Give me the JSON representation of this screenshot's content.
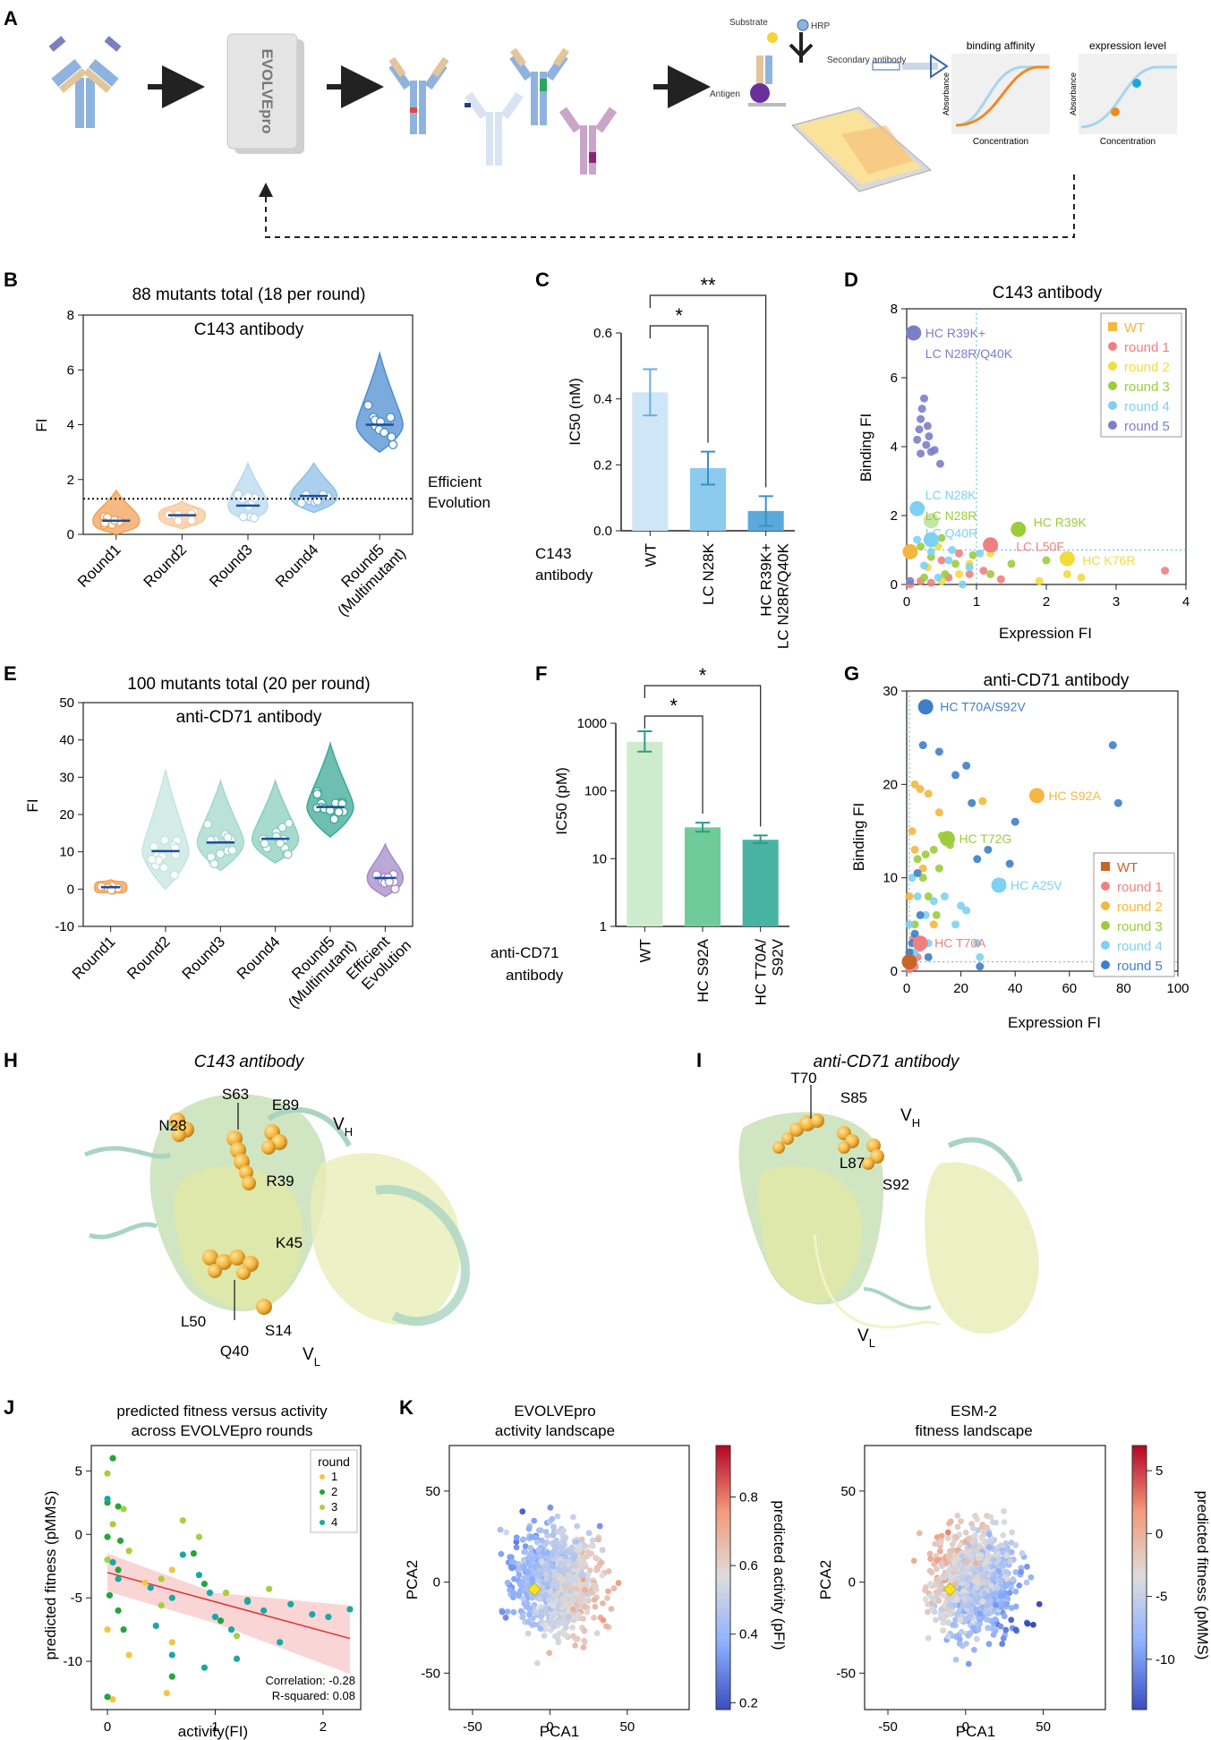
{
  "panel_labels": {
    "A": "A",
    "B": "B",
    "C": "C",
    "D": "D",
    "E": "E",
    "F": "F",
    "G": "G",
    "H": "H",
    "I": "I",
    "J": "J",
    "K": "K"
  },
  "panel_a": {
    "box_label": "EVOLVEpro",
    "assay": {
      "substrate": "Substrate",
      "hrp": "HRP",
      "secondary": "Secondary antibody",
      "antigen": "Antigen"
    },
    "inset1": {
      "title": "binding affinity",
      "ylabel": "Absorbance",
      "xlabel": "Concentration"
    },
    "inset2": {
      "title": "expression level",
      "ylabel": "Absorbance",
      "xlabel": "Concentration"
    }
  },
  "chart_data": [
    {
      "panel": "B",
      "type": "violin",
      "title": "88 mutants total (18 per round)",
      "subtitle": "C143 antibody",
      "ylabel": "FI",
      "ylim": [
        0,
        8
      ],
      "yticks": [
        0,
        2,
        4,
        6,
        8
      ],
      "categories": [
        "Round1",
        "Round2",
        "Round3",
        "Round4",
        "Round5 (Multimutant)"
      ],
      "colors": [
        "#f2a15a",
        "#f7c99c",
        "#b9d8ef",
        "#8fc0e8",
        "#4f8fd0"
      ],
      "medians": [
        0.5,
        0.7,
        1.05,
        1.4,
        4.0
      ],
      "threshold": {
        "value": 1.3,
        "label": "Efficient Evolution"
      }
    },
    {
      "panel": "C",
      "type": "bar",
      "ylabel": "IC50 (nM)",
      "ylim": [
        0,
        0.6
      ],
      "yticks": [
        0.0,
        0.2,
        0.4,
        0.6
      ],
      "group_label": "C143 antibody",
      "categories": [
        "WT",
        "LC N28K",
        "HC R39K+ LC N28R/Q40K"
      ],
      "values": [
        0.42,
        0.19,
        0.06
      ],
      "errors": [
        0.07,
        0.05,
        0.045
      ],
      "colors": [
        "#cfe6f8",
        "#8ccbee",
        "#5ba9dc"
      ],
      "significance": [
        {
          "label": "*",
          "from": 0,
          "to": 1
        },
        {
          "label": "**",
          "from": 0,
          "to": 2
        }
      ]
    },
    {
      "panel": "D",
      "type": "scatter",
      "title": "C143 antibody",
      "xlabel": "Expression FI",
      "ylabel": "Binding FI",
      "xlim": [
        0,
        4
      ],
      "ylim": [
        0,
        8
      ],
      "xticks": [
        0,
        1,
        2,
        3,
        4
      ],
      "yticks": [
        0,
        2,
        4,
        6,
        8
      ],
      "legend": [
        {
          "name": "WT",
          "color": "#f4b73f"
        },
        {
          "name": "round 1",
          "color": "#f08080"
        },
        {
          "name": "round 2",
          "color": "#f2dc3c"
        },
        {
          "name": "round 3",
          "color": "#9ccc3c"
        },
        {
          "name": "round 4",
          "color": "#7ed1f0"
        },
        {
          "name": "round 5",
          "color": "#7b7fc6"
        }
      ],
      "annotations": [
        {
          "text": "HC R39K+",
          "x": 0.1,
          "y": 7.3,
          "color": "#7b7fc6"
        },
        {
          "text": "LC N28R/Q40K",
          "x": 0.1,
          "y": 6.7,
          "color": "#7b7fc6"
        },
        {
          "text": "LC N28K",
          "x": 0.1,
          "y": 2.6,
          "color": "#7ed1f0"
        },
        {
          "text": "LC N28R",
          "x": 0.1,
          "y": 2.0,
          "color": "#9ccc3c"
        },
        {
          "text": "LC Q40R",
          "x": 0.1,
          "y": 1.5,
          "color": "#7ed1f0"
        },
        {
          "text": "HC R39K",
          "x": 1.65,
          "y": 1.8,
          "color": "#9ccc3c"
        },
        {
          "text": "LC L50F",
          "x": 1.4,
          "y": 1.1,
          "color": "#f08080"
        },
        {
          "text": "HC K76R",
          "x": 2.35,
          "y": 0.7,
          "color": "#f2dc3c"
        }
      ],
      "ref_x": 1.0,
      "ref_y": 1.0
    },
    {
      "panel": "E",
      "type": "violin",
      "title": "100 mutants total (20 per round)",
      "subtitle": "anti-CD71 antibody",
      "ylabel": "FI",
      "ylim": [
        -10,
        50
      ],
      "yticks": [
        -10,
        0,
        10,
        20,
        30,
        40,
        50
      ],
      "categories": [
        "Round1",
        "Round2",
        "Round3",
        "Round4",
        "Round5 (Multimutant)",
        "Efficient Evolution"
      ],
      "colors": [
        "#f2a15a",
        "#c5e5dd",
        "#a3d8cc",
        "#8acfbe",
        "#3fa898",
        "#a48bc9"
      ],
      "medians": [
        0.5,
        10.2,
        12.5,
        13.5,
        22,
        3
      ]
    },
    {
      "panel": "F",
      "type": "bar",
      "yscale": "log",
      "ylabel": "IC50 (pM)",
      "ylim": [
        1,
        1000
      ],
      "yticks": [
        1,
        10,
        100,
        1000
      ],
      "group_label": "anti-CD71 antibody",
      "categories": [
        "WT",
        "HC S92A",
        "HC T70A/ S92V"
      ],
      "values": [
        530,
        29,
        19
      ],
      "errors_low": [
        380,
        25,
        17
      ],
      "errors_high": [
        760,
        34,
        22
      ],
      "colors": [
        "#cdeccd",
        "#6fcc9a",
        "#48b3a3"
      ],
      "significance": [
        {
          "label": "*",
          "from": 0,
          "to": 1
        },
        {
          "label": "*",
          "from": 0,
          "to": 2
        }
      ]
    },
    {
      "panel": "G",
      "type": "scatter",
      "title": "anti-CD71 antibody",
      "xlabel": "Expression FI",
      "ylabel": "Binding FI",
      "xlim": [
        0,
        100
      ],
      "ylim": [
        0,
        30
      ],
      "xticks": [
        0,
        20,
        40,
        60,
        80,
        100
      ],
      "yticks": [
        0,
        10,
        20,
        30
      ],
      "legend": [
        {
          "name": "WT",
          "color": "#c8662a"
        },
        {
          "name": "round 1",
          "color": "#f08080"
        },
        {
          "name": "round 2",
          "color": "#f4b73f"
        },
        {
          "name": "round 3",
          "color": "#9ccc3c"
        },
        {
          "name": "round 4",
          "color": "#7ed1f0"
        },
        {
          "name": "round 5",
          "color": "#3d7fc9"
        }
      ],
      "annotations": [
        {
          "text": "HC T70A/S92V",
          "x": 8,
          "y": 28.3,
          "color": "#3d7fc9"
        },
        {
          "text": "HC S92A",
          "x": 48,
          "y": 18.8,
          "color": "#f4b73f"
        },
        {
          "text": "HC T72G",
          "x": 15,
          "y": 14.2,
          "color": "#9ccc3c"
        },
        {
          "text": "HC A25V",
          "x": 34,
          "y": 9.2,
          "color": "#7ed1f0"
        },
        {
          "text": "HC T70A",
          "x": 6,
          "y": 3.0,
          "color": "#f08080"
        }
      ],
      "ref_x": 1.0,
      "ref_y": 1.0
    },
    {
      "panel": "J",
      "type": "scatter",
      "title": "predicted fitness versus activity",
      "subtitle": "across EVOLVEpro rounds",
      "xlabel": "activity(FI)",
      "ylabel": "predicted fitness (pMMS)",
      "xlim": [
        -0.15,
        2.35
      ],
      "ylim": [
        -13.8,
        7
      ],
      "xticks": [
        0,
        1,
        2
      ],
      "yticks": [
        -10,
        -5,
        0,
        5
      ],
      "legend_title": "round",
      "legend": [
        {
          "name": "1",
          "color": "#f4c542"
        },
        {
          "name": "2",
          "color": "#27a33f"
        },
        {
          "name": "3",
          "color": "#a5cf3f"
        },
        {
          "name": "4",
          "color": "#17a8a8"
        }
      ],
      "fit": {
        "x": [
          0,
          2.25
        ],
        "y": [
          -3.0,
          -8.2
        ]
      },
      "stats": [
        "Correlation: -0.28",
        "R-squared: 0.08"
      ]
    },
    {
      "panel": "K1",
      "type": "scatter",
      "title": "EVOLVEpro",
      "subtitle": "activity landscape",
      "xlabel": "PCA1",
      "ylabel": "PCA2",
      "xlim": [
        -65,
        90
      ],
      "ylim": [
        -70,
        75
      ],
      "xticks": [
        -50,
        0,
        50
      ],
      "yticks": [
        -50,
        0,
        50
      ],
      "colorbar": {
        "label": "predicted activity (pFI)",
        "range": [
          0.18,
          0.95
        ],
        "ticks": [
          0.2,
          0.4,
          0.6,
          0.8
        ]
      }
    },
    {
      "panel": "K2",
      "type": "scatter",
      "title": "ESM-2",
      "subtitle": "fitness landscape",
      "xlabel": "PCA1",
      "ylabel": "PCA2",
      "xlim": [
        -65,
        90
      ],
      "ylim": [
        -70,
        75
      ],
      "xticks": [
        -50,
        0,
        50
      ],
      "yticks": [
        -50,
        0,
        50
      ],
      "colorbar": {
        "label": "predicted fitness (pMMS)",
        "range": [
          -14,
          7
        ],
        "ticks": [
          -10,
          -5,
          0,
          5
        ]
      }
    }
  ],
  "structures": {
    "H": {
      "title": "C143 antibody",
      "vh": "V",
      "vh_sub": "H",
      "vl": "V",
      "vl_sub": "L",
      "residues": [
        "S63",
        "E89",
        "N28",
        "R39",
        "K45",
        "L50",
        "Q40",
        "S14"
      ]
    },
    "I": {
      "title": "anti-CD71 antibody",
      "vh": "V",
      "vh_sub": "H",
      "vl": "V",
      "vl_sub": "L",
      "residues": [
        "T70",
        "S85",
        "L87",
        "S92"
      ]
    }
  }
}
